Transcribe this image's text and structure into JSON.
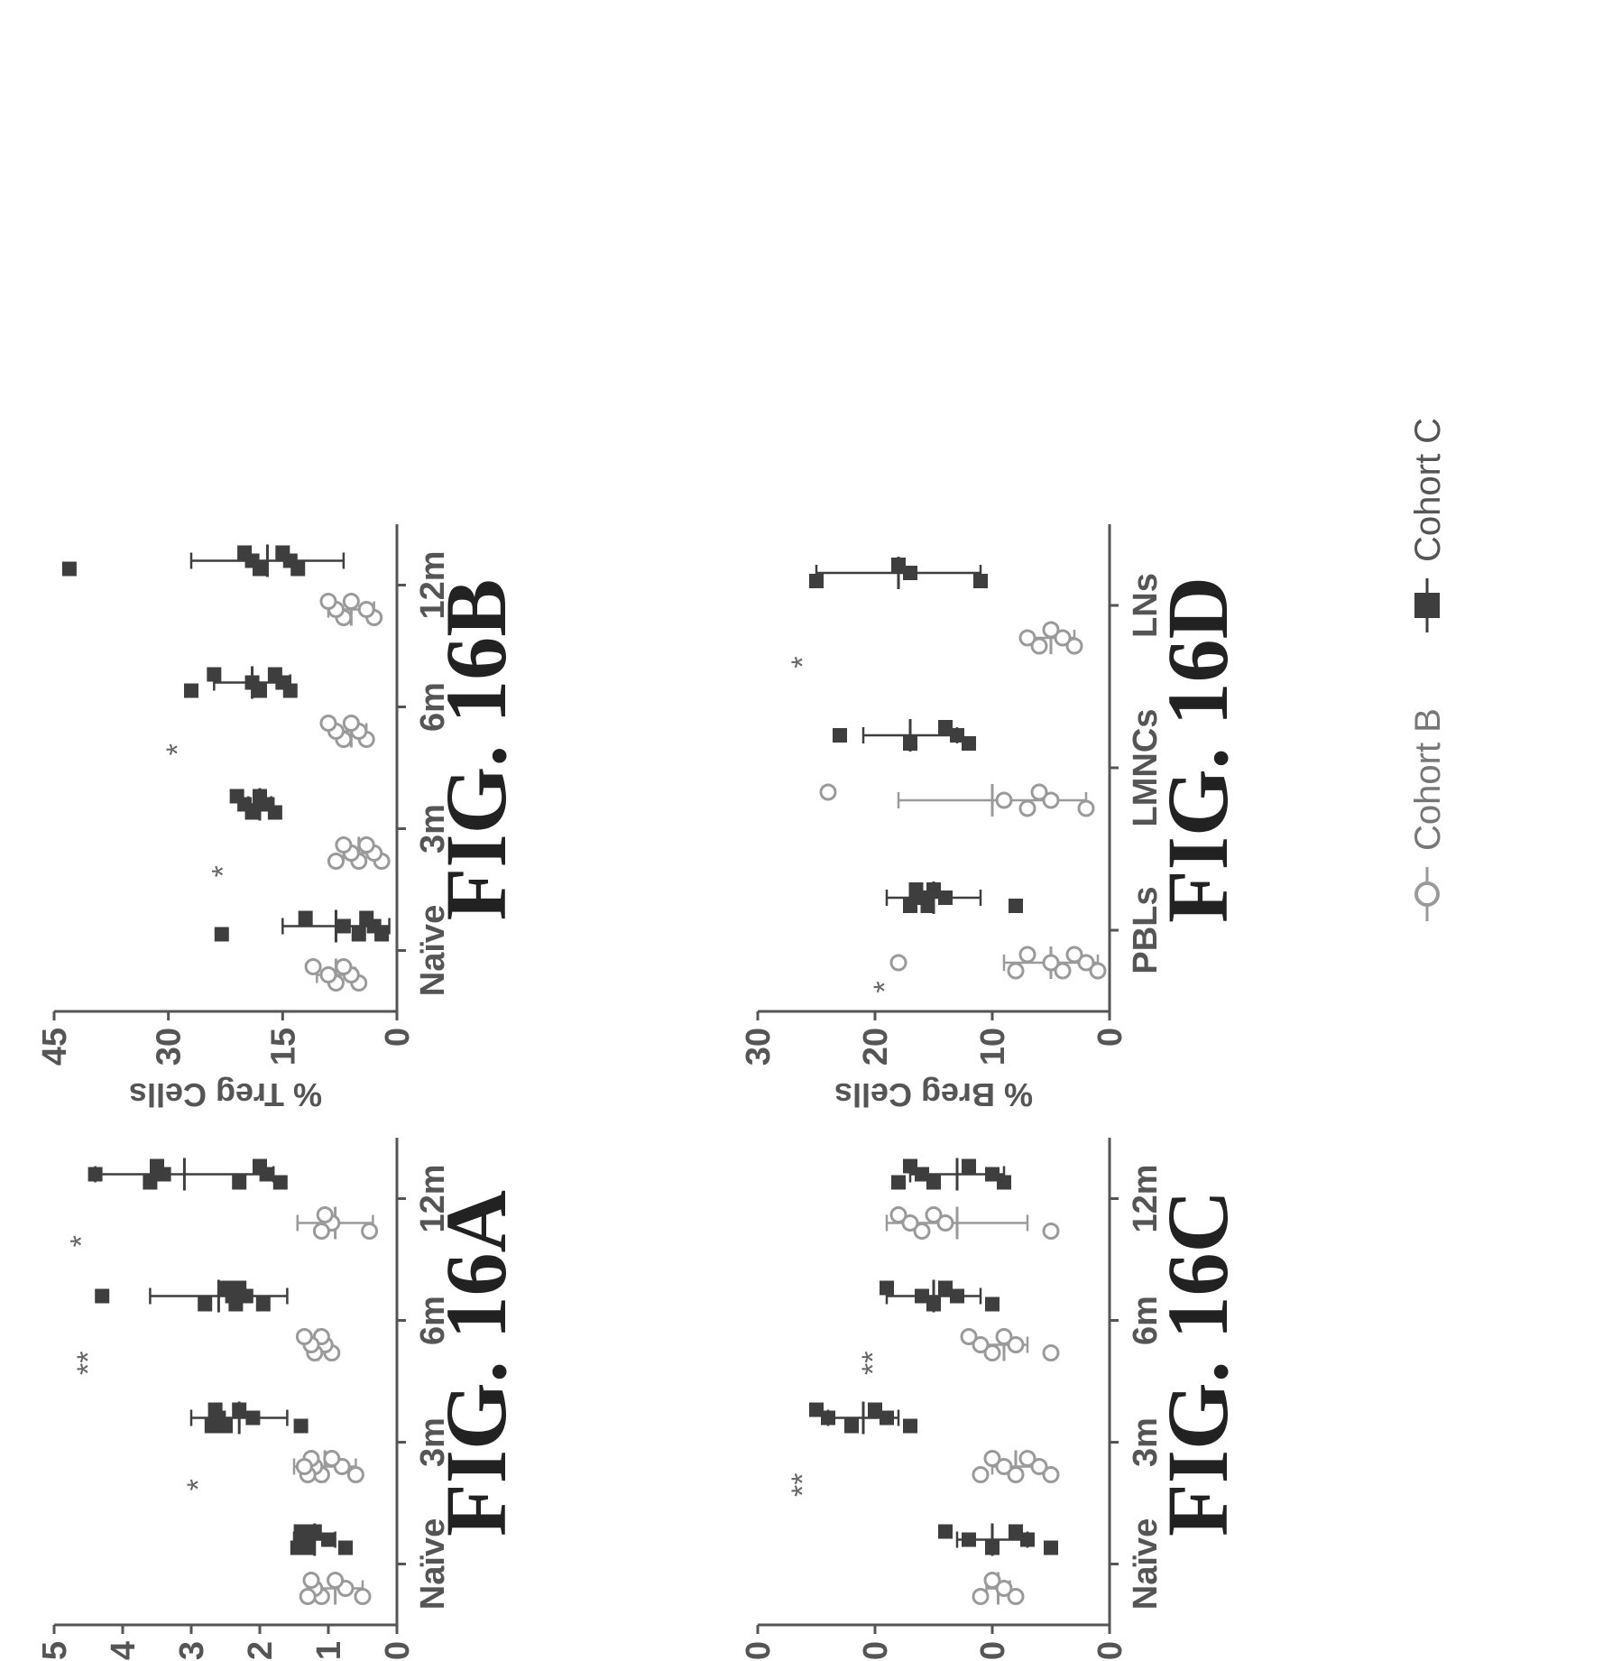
{
  "chart_data": [
    {
      "id": "16A",
      "type": "scatter",
      "fig_label": "FIG. 16A",
      "ylabel": "% NS Cells",
      "ylim": [
        0,
        5
      ],
      "yticks": [
        0,
        1,
        2,
        3,
        4,
        5
      ],
      "ytick_labels": [
        "0",
        "1",
        "2",
        "3",
        "4",
        "5"
      ],
      "categories": [
        "Naïve",
        "3m",
        "6m",
        "12m"
      ],
      "series": [
        {
          "cohort": "B",
          "points": [
            [
              0.5,
              0.75,
              0.9,
              1.1,
              1.2,
              1.25,
              1.3
            ]
          ],
          "mean": [
            0.9
          ],
          "sem": [
            0.4
          ]
        },
        {
          "cohort": "C",
          "points": [
            [
              0.75,
              1.0,
              1.2,
              1.3,
              1.35,
              1.4,
              1.45
            ]
          ],
          "mean": [
            1.2
          ],
          "sem": [
            0.3
          ]
        }
      ],
      "groups": [
        {
          "B": [
            0.5,
            0.75,
            0.9,
            1.1,
            1.2,
            1.25,
            1.3
          ],
          "B_mean": 0.9,
          "B_sem": 0.4,
          "C": [
            0.75,
            1.0,
            1.2,
            1.3,
            1.35,
            1.4,
            1.45
          ],
          "C_mean": 1.2,
          "C_sem": 0.3,
          "stars": ""
        },
        {
          "B": [
            0.6,
            0.8,
            0.95,
            1.1,
            1.2,
            1.25,
            1.3,
            1.35
          ],
          "B_mean": 1.05,
          "B_sem": 0.45,
          "C": [
            1.4,
            2.1,
            2.3,
            2.5,
            2.6,
            2.65,
            2.7
          ],
          "C_mean": 2.3,
          "C_sem": 0.7,
          "stars": "*"
        },
        {
          "B": [
            0.95,
            1.05,
            1.1,
            1.2,
            1.25,
            1.35
          ],
          "B_mean": 1.15,
          "B_sem": 0.15,
          "C": [
            1.95,
            2.2,
            2.3,
            2.35,
            2.4,
            2.5,
            2.8,
            4.3
          ],
          "C_mean": 2.6,
          "C_sem": 1.0,
          "stars": "**"
        },
        {
          "B": [
            0.4,
            0.95,
            1.05,
            1.1
          ],
          "B_mean": 0.9,
          "B_sem": 0.55,
          "C": [
            1.7,
            1.9,
            2.0,
            2.3,
            3.4,
            3.5,
            3.6,
            4.4
          ],
          "C_mean": 3.1,
          "C_sem": 1.3,
          "stars": "*"
        }
      ]
    },
    {
      "id": "16B",
      "type": "scatter",
      "fig_label": "FIG. 16B",
      "ylabel": "% Treg Cells",
      "ylim": [
        0,
        45
      ],
      "yticks": [
        0,
        15,
        30,
        45
      ],
      "ytick_labels": [
        "0",
        "15",
        "30",
        "45"
      ],
      "categories": [
        "Naïve",
        "3m",
        "6m",
        "12m"
      ],
      "groups": [
        {
          "B": [
            5,
            6,
            7,
            8,
            9,
            11
          ],
          "B_mean": 8,
          "B_sem": 2.5,
          "C": [
            2,
            3,
            4,
            5,
            7,
            12,
            23
          ],
          "C_mean": 8,
          "C_sem": 7,
          "stars": ""
        },
        {
          "B": [
            2,
            3,
            4,
            5,
            6,
            7,
            8
          ],
          "B_mean": 5,
          "B_sem": 2,
          "C": [
            16,
            17,
            18,
            19,
            20,
            21
          ],
          "C_mean": 18,
          "C_sem": 1.5,
          "stars": "*"
        },
        {
          "B": [
            4,
            5,
            6,
            7,
            8,
            9
          ],
          "B_mean": 6,
          "B_sem": 2,
          "C": [
            14,
            15,
            16,
            18,
            19,
            24,
            27
          ],
          "C_mean": 19,
          "C_sem": 5,
          "stars": "*"
        },
        {
          "B": [
            3,
            4,
            6,
            7,
            8,
            9
          ],
          "B_mean": 6,
          "B_sem": 3,
          "C": [
            13,
            14,
            15,
            18,
            19,
            20,
            43
          ],
          "C_mean": 17,
          "C_sem": 10,
          "stars": ""
        }
      ]
    },
    {
      "id": "16C",
      "type": "scatter",
      "fig_label": "FIG. 16C",
      "ylabel": "% Breg Cells",
      "ylim": [
        0,
        30
      ],
      "yticks": [
        0,
        10,
        20,
        30
      ],
      "ytick_labels": [
        "0",
        "10",
        "20",
        "30"
      ],
      "categories": [
        "Naïve",
        "3m",
        "6m",
        "12m"
      ],
      "groups": [
        {
          "B": [
            8,
            9,
            10,
            11
          ],
          "B_mean": 9.5,
          "B_sem": 1,
          "C": [
            5,
            7,
            8,
            10,
            12,
            14
          ],
          "C_mean": 10,
          "C_sem": 3,
          "stars": ""
        },
        {
          "B": [
            5,
            6,
            7,
            8,
            9,
            10,
            11
          ],
          "B_mean": 8,
          "B_sem": 2,
          "C": [
            17,
            19,
            20,
            22,
            24,
            25
          ],
          "C_mean": 21,
          "C_sem": 3,
          "stars": "**"
        },
        {
          "B": [
            5,
            8,
            9,
            10,
            11,
            12
          ],
          "B_mean": 9,
          "B_sem": 2,
          "C": [
            10,
            13,
            14,
            15,
            16,
            19
          ],
          "C_mean": 15,
          "C_sem": 4,
          "stars": "**"
        },
        {
          "B": [
            5,
            14,
            15,
            16,
            17,
            18
          ],
          "B_mean": 13,
          "B_sem": 6,
          "C": [
            9,
            10,
            12,
            15,
            16,
            17,
            18
          ],
          "C_mean": 13,
          "C_sem": 4,
          "stars": ""
        }
      ]
    },
    {
      "id": "16D",
      "type": "scatter",
      "fig_label": "FIG. 16D",
      "ylabel": "% Breg Cells",
      "ylim": [
        0,
        30
      ],
      "yticks": [
        0,
        10,
        20,
        30
      ],
      "ytick_labels": [
        "0",
        "10",
        "20",
        "30"
      ],
      "categories": [
        "PBLs",
        "LMNCs",
        "LNs"
      ],
      "groups": [
        {
          "B": [
            1,
            2,
            3,
            4,
            5,
            7,
            8,
            18
          ],
          "B_mean": 5,
          "B_sem": 4,
          "C": [
            8,
            14,
            15,
            15.5,
            16,
            16.5,
            17
          ],
          "C_mean": 15,
          "C_sem": 4,
          "stars": "*"
        },
        {
          "B": [
            2,
            5,
            6,
            7,
            9,
            24
          ],
          "B_mean": 10,
          "B_sem": 8,
          "C": [
            12,
            13,
            14,
            17,
            23
          ],
          "C_mean": 17,
          "C_sem": 4,
          "stars": ""
        },
        {
          "B": [
            3,
            4,
            5,
            6,
            7
          ],
          "B_mean": 5,
          "B_sem": 2,
          "C": [
            11,
            17,
            18,
            25
          ],
          "C_mean": 18,
          "C_sem": 7,
          "stars": "*"
        }
      ]
    }
  ],
  "legend": {
    "cohort_b_label": "Cohort B",
    "cohort_c_label": "Cohort C"
  },
  "colors": {
    "cohort_b": "#9a9a9a",
    "cohort_c": "#3e3e3e",
    "axis": "#555555"
  }
}
